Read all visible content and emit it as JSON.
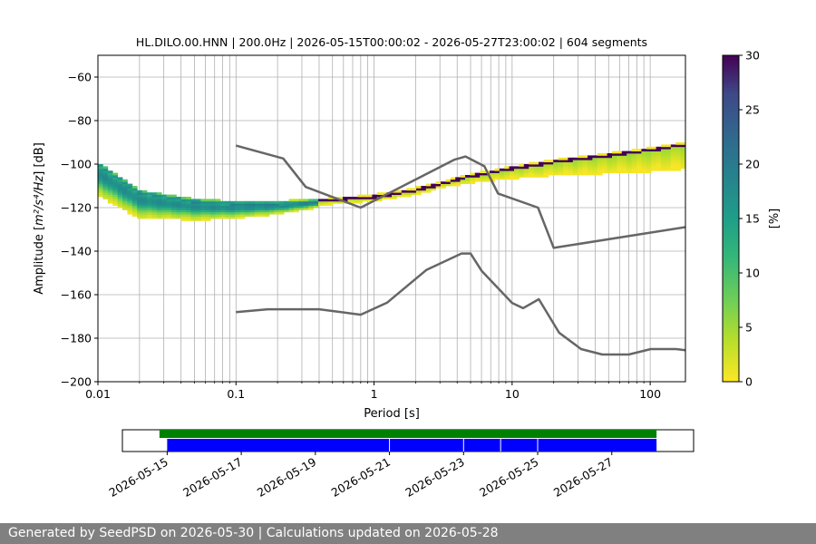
{
  "chart_data": {
    "type": "heatmap",
    "title": "HL.DILO.00.HNN | 200.0Hz | 2026-05-15T00:00:02 - 2026-05-27T23:00:02 | 604 segments",
    "xlabel": "Period [s]",
    "ylabel_prefix": "Amplitude [",
    "ylabel_math": "m²/s⁴/Hz",
    "ylabel_suffix": "] [dB]",
    "x_scale": "log",
    "xlim": [
      0.01,
      180
    ],
    "ylim": [
      -200,
      -50
    ],
    "x_ticks": [
      0.01,
      0.1,
      1,
      10,
      100
    ],
    "x_tick_labels": [
      "0.01",
      "0.1",
      "1",
      "10",
      "100"
    ],
    "y_ticks": [
      -200,
      -180,
      -160,
      -140,
      -120,
      -100,
      -80,
      -60
    ],
    "y_tick_labels": [
      "−200",
      "−180",
      "−160",
      "−140",
      "−120",
      "−100",
      "−80",
      "−60"
    ],
    "grid": true,
    "colorbar": {
      "label": "[%]",
      "range": [
        0,
        30
      ],
      "ticks": [
        0,
        5,
        10,
        15,
        20,
        25,
        30
      ],
      "tick_labels": [
        "0",
        "5",
        "10",
        "15",
        "20",
        "25",
        "30"
      ],
      "colormap": "viridis_r"
    },
    "noise_models": [
      {
        "name": "high",
        "color": "#666666",
        "points": [
          [
            0.1,
            -91.5
          ],
          [
            0.22,
            -97.4
          ],
          [
            0.32,
            -110.5
          ],
          [
            0.8,
            -120
          ],
          [
            3.8,
            -98
          ],
          [
            4.6,
            -96.5
          ],
          [
            6.3,
            -101
          ],
          [
            7.9,
            -113.5
          ],
          [
            15.4,
            -120
          ],
          [
            20,
            -138.5
          ],
          [
            354.8,
            -126
          ]
        ]
      },
      {
        "name": "low",
        "color": "#666666",
        "points": [
          [
            0.1,
            -168
          ],
          [
            0.17,
            -166.7
          ],
          [
            0.4,
            -166.7
          ],
          [
            0.8,
            -169.2
          ],
          [
            1.24,
            -163.7
          ],
          [
            2.4,
            -148.6
          ],
          [
            4.3,
            -141.1
          ],
          [
            5,
            -141.1
          ],
          [
            6,
            -149
          ],
          [
            10,
            -163.8
          ],
          [
            12,
            -166.2
          ],
          [
            15.6,
            -162.1
          ],
          [
            21.9,
            -177.5
          ],
          [
            31.6,
            -185
          ],
          [
            45,
            -187.5
          ],
          [
            70,
            -187.5
          ],
          [
            101,
            -185
          ],
          [
            154,
            -185
          ],
          [
            328,
            -187.5
          ]
        ]
      }
    ],
    "psd_trend": [
      [
        0.01,
        -100
      ],
      [
        0.02,
        -113
      ],
      [
        0.05,
        -117
      ],
      [
        0.1,
        -118
      ],
      [
        0.2,
        -118
      ],
      [
        0.5,
        -116.5
      ],
      [
        1,
        -115
      ],
      [
        2,
        -112
      ],
      [
        5,
        -105.5
      ],
      [
        10,
        -102
      ],
      [
        20,
        -99
      ],
      [
        50,
        -96
      ],
      [
        100,
        -93.5
      ],
      [
        180,
        -91
      ]
    ],
    "timeline": {
      "x_tick_labels": [
        "2026-05-15",
        "2026-05-17",
        "2026-05-19",
        "2026-05-21",
        "2026-05-23",
        "2026-05-25",
        "2026-05-27"
      ],
      "range": [
        "2026-05-13T19:00",
        "2026-05-29T05:00"
      ],
      "data_bar": {
        "color": "#008000",
        "start": "2026-05-14T19:00",
        "end": "2026-05-28T05:00"
      },
      "psd_bar": {
        "color": "#0000ff",
        "start": "2026-05-15T00:00",
        "end": "2026-05-28T05:00",
        "gaps": [
          "2026-05-21T00:00",
          "2026-05-23T00:00",
          "2026-05-24T00:00",
          "2026-05-25T00:00"
        ]
      }
    }
  },
  "footer": {
    "text": "Generated by SeedPSD on 2026-05-30 | Calculations updated on 2026-05-28"
  }
}
